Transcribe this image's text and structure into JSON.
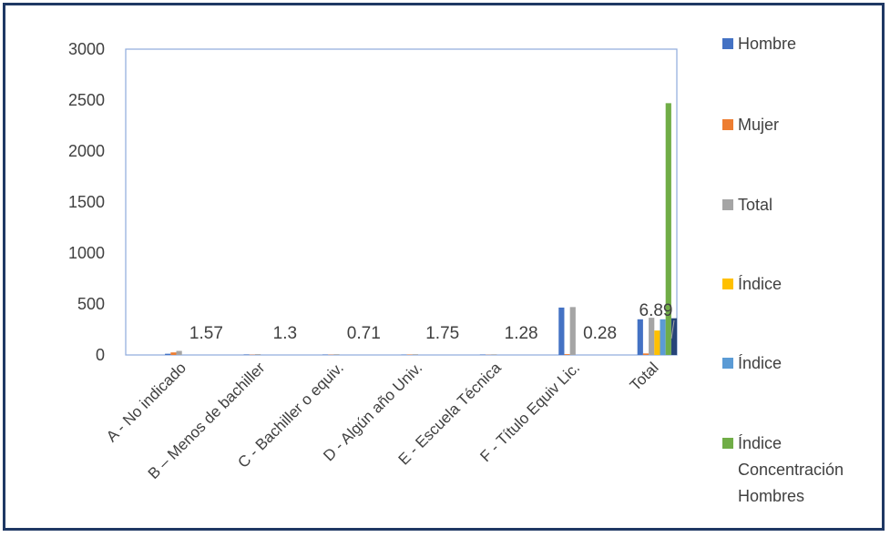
{
  "chart_data": {
    "type": "bar",
    "categories": [
      "A - No indicado",
      "B – Menos de bachiller",
      "C - Bachiller o equiv.",
      "D - Algún año Univ.",
      "E - Escuela Técnica",
      "F - Título Equiv Lic.",
      "Total"
    ],
    "series": [
      {
        "name": "Hombre",
        "color": "#4472c4",
        "values": [
          12,
          5,
          4,
          3,
          4,
          465,
          350
        ]
      },
      {
        "name": "Mujer",
        "color": "#ed7d31",
        "values": [
          25,
          3,
          3,
          4,
          2,
          8,
          15
        ]
      },
      {
        "name": "Total",
        "color": "#a5a5a5",
        "values": [
          40,
          8,
          7,
          7,
          6,
          470,
          365
        ]
      },
      {
        "name": "Índice",
        "color": "#ffc000",
        "values": [
          0,
          0,
          0,
          0,
          0,
          0,
          240
        ]
      },
      {
        "name": "Índice",
        "color": "#5b9bd5",
        "values": [
          0,
          0,
          0,
          0,
          0,
          0,
          350
        ]
      },
      {
        "name": "Índice Concentración Hombres",
        "color": "#70ad47",
        "values": [
          0,
          0,
          0,
          0,
          0,
          0,
          2470
        ]
      },
      {
        "name": "",
        "color": "#264478",
        "values": [
          0,
          0,
          0,
          0,
          0,
          0,
          360
        ]
      }
    ],
    "data_labels": [
      "1.57",
      "1.3",
      "0.71",
      "1.75",
      "1.28",
      "0.28",
      "6.89"
    ],
    "yticks": [
      "0",
      "500",
      "1000",
      "1500",
      "2000",
      "2500",
      "3000"
    ],
    "ylim": [
      0,
      3000
    ],
    "legend": [
      "Hombre",
      "Mujer",
      "Total",
      "Índice",
      "Índice",
      "Índice",
      "Concentración",
      "Hombres"
    ],
    "legend_position": "right",
    "grid": false
  }
}
